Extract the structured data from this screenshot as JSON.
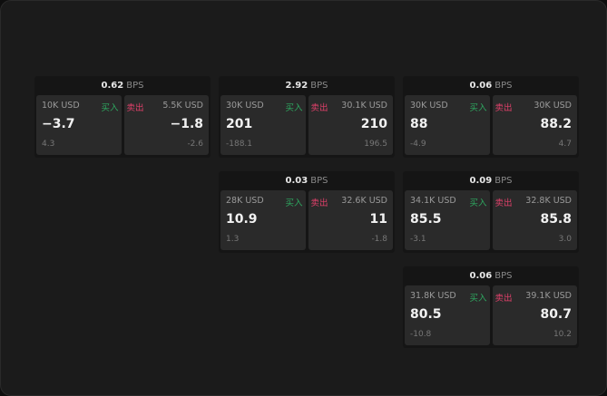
{
  "unit": "BPS",
  "buy_label": "买入",
  "sell_label": "卖出",
  "colors": {
    "buy": "#2ea860",
    "sell": "#e0406a"
  },
  "cards": [
    {
      "spread": "0.62",
      "bid": {
        "qty": "10K USD",
        "price": "−3.7",
        "change": "4.3"
      },
      "ask": {
        "qty": "5.5K USD",
        "price": "−1.8",
        "change": "-2.6"
      }
    },
    {
      "spread": "2.92",
      "bid": {
        "qty": "30K USD",
        "price": "201",
        "change": "-188.1"
      },
      "ask": {
        "qty": "30.1K USD",
        "price": "210",
        "change": "196.5"
      }
    },
    {
      "spread": "0.06",
      "bid": {
        "qty": "30K USD",
        "price": "88",
        "change": "-4.9"
      },
      "ask": {
        "qty": "30K USD",
        "price": "88.2",
        "change": "4.7"
      }
    },
    {
      "spread": "0.03",
      "bid": {
        "qty": "28K USD",
        "price": "10.9",
        "change": "1.3"
      },
      "ask": {
        "qty": "32.6K USD",
        "price": "11",
        "change": "-1.8"
      }
    },
    {
      "spread": "0.09",
      "bid": {
        "qty": "34.1K USD",
        "price": "85.5",
        "change": "-3.1"
      },
      "ask": {
        "qty": "32.8K USD",
        "price": "85.8",
        "change": "3.0"
      }
    },
    {
      "spread": "0.06",
      "bid": {
        "qty": "31.8K USD",
        "price": "80.5",
        "change": "-10.8"
      },
      "ask": {
        "qty": "39.1K USD",
        "price": "80.7",
        "change": "10.2"
      }
    }
  ]
}
